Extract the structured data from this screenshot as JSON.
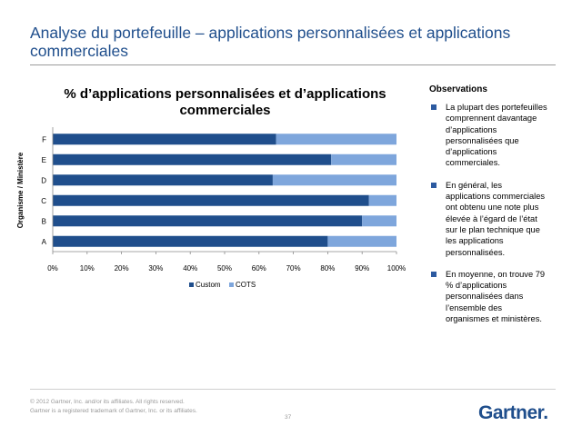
{
  "slide": {
    "title": "Analyse du portefeuille – applications personnalisées et applications commerciales"
  },
  "chart_data": {
    "type": "bar",
    "orientation": "horizontal",
    "stacked": true,
    "title": "% d’applications personnalisées et d’applications commerciales",
    "ylabel": "Organisme / Ministère",
    "xlabel": "",
    "categories": [
      "A",
      "B",
      "C",
      "D",
      "E",
      "F"
    ],
    "series": [
      {
        "name": "Custom",
        "color": "#1f4e8c",
        "values": [
          80,
          90,
          92,
          64,
          81,
          65
        ]
      },
      {
        "name": "COTS",
        "color": "#7ea6dc",
        "values": [
          20,
          10,
          8,
          36,
          19,
          35
        ]
      }
    ],
    "xlim": [
      0,
      100
    ],
    "x_ticks": [
      "0%",
      "10%",
      "20%",
      "30%",
      "40%",
      "50%",
      "60%",
      "70%",
      "80%",
      "90%",
      "100%"
    ],
    "legend_position": "bottom",
    "grid": false
  },
  "observations": {
    "heading": "Observations",
    "items": [
      "La plupart des portefeuilles comprennent davantage d’applications personnalisées que d’applications commerciales.",
      "En général, les applications commerciales ont obtenu une note plus élevée à l’égard de l’état sur le plan technique que les applications personnalisées.",
      "En moyenne, on trouve 79 % d’applications personnalisées dans l’ensemble des organismes et ministères."
    ]
  },
  "footer": {
    "copyright": "© 2012 Gartner, Inc. and/or its affiliates. All rights reserved.",
    "trademark": "Gartner is a registered trademark of Gartner, Inc. or its affiliates.",
    "page_number": "37",
    "logo": "Gartner",
    "logo_dot": "."
  }
}
